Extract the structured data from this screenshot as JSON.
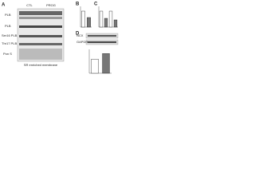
{
  "panel_a": {
    "label": "A",
    "columns": [
      "CTL",
      "PROG"
    ],
    "rows": [
      "PLB",
      "PLB",
      "Ser16 PLB",
      "Thr17 PLB",
      "Pon S"
    ],
    "caption": "SR enriched membrane"
  },
  "panel_b": {
    "label": "B",
    "values": [
      1,
      0.6
    ],
    "colors": [
      "#ffffff",
      "#777777"
    ],
    "ylim": [
      0,
      1.3
    ]
  },
  "panel_c": {
    "label": "C",
    "values": [
      1,
      0.55,
      1,
      0.45
    ],
    "colors": [
      "#ffffff",
      "#777777",
      "#ffffff",
      "#777777"
    ],
    "ylim": [
      0,
      1.3
    ]
  },
  "panel_d": {
    "label": "D",
    "rows": [
      "NCX",
      "GAPDH"
    ],
    "values": [
      1,
      1.4
    ],
    "colors": [
      "#ffffff",
      "#777777"
    ],
    "ylim": [
      0,
      1.7
    ]
  }
}
